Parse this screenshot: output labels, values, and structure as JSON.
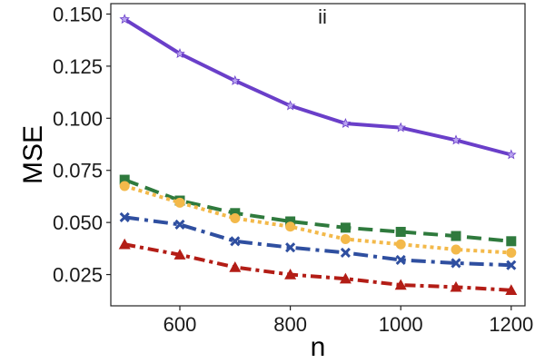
{
  "chart_data": {
    "type": "line",
    "title": "",
    "panel_label": "ii",
    "xlabel": "n",
    "ylabel": "MSE",
    "xlim": [
      475,
      1225
    ],
    "ylim": [
      0.01,
      0.155
    ],
    "xticks": [
      600,
      800,
      1000,
      1200
    ],
    "yticks": [
      0.025,
      0.05,
      0.075,
      0.1,
      0.125,
      0.15
    ],
    "ytick_labels": [
      "0.025",
      "0.050",
      "0.075",
      "0.100",
      "0.125",
      "0.150"
    ],
    "grid": false,
    "legend": null,
    "x": [
      500,
      600,
      700,
      800,
      900,
      1000,
      1100,
      1200
    ],
    "series": [
      {
        "values": [
          0.1475,
          0.131,
          0.118,
          0.106,
          0.0975,
          0.0955,
          0.0895,
          0.0825
        ],
        "color": "#6a3fc9",
        "dash": "",
        "marker": "star"
      },
      {
        "values": [
          0.0705,
          0.0605,
          0.0545,
          0.0505,
          0.0475,
          0.0455,
          0.0435,
          0.041
        ],
        "color": "#2f7a3d",
        "dash": "16,8",
        "marker": "square"
      },
      {
        "values": [
          0.0675,
          0.0595,
          0.052,
          0.048,
          0.042,
          0.0395,
          0.037,
          0.0355
        ],
        "color": "#f3b94a",
        "dash": "4,4",
        "marker": "circle"
      },
      {
        "values": [
          0.0525,
          0.049,
          0.041,
          0.038,
          0.0355,
          0.032,
          0.0305,
          0.0295
        ],
        "color": "#2f4fa0",
        "dash": "16,6,4,6",
        "marker": "x"
      },
      {
        "values": [
          0.0395,
          0.0345,
          0.0285,
          0.025,
          0.023,
          0.02,
          0.019,
          0.0175
        ],
        "color": "#b31d16",
        "dash": "12,5,4,5",
        "marker": "triangle"
      }
    ]
  }
}
